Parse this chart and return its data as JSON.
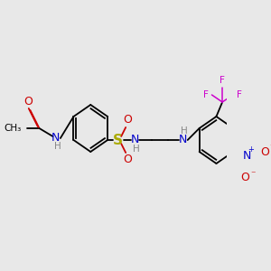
{
  "bg_color": "#e8e8e8",
  "fig_size": [
    3.0,
    3.0
  ],
  "dpi": 100,
  "colors": {
    "C": "#000000",
    "N": "#0000cc",
    "O": "#cc0000",
    "S": "#aaaa00",
    "F": "#cc00cc",
    "H": "#888888",
    "bond": "#000000"
  },
  "lw": 1.3,
  "fs": 9.0,
  "fs_small": 7.5
}
